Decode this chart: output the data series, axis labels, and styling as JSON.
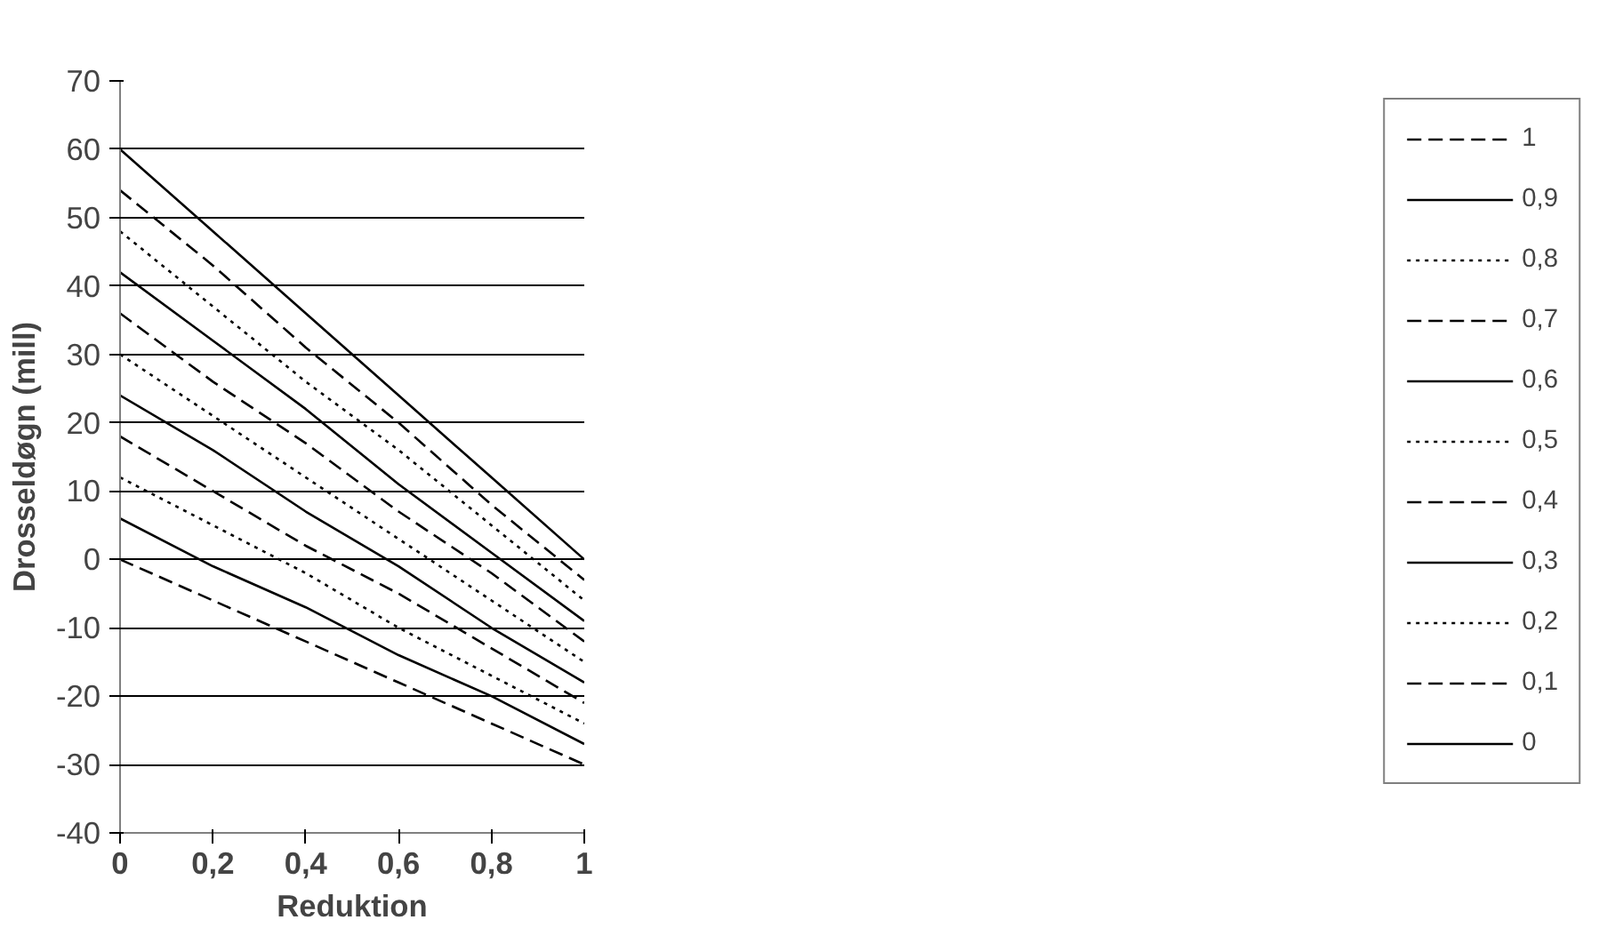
{
  "chart_data": {
    "type": "line",
    "xlabel": "Reduktion",
    "ylabel": "Drosseldøgn (mill)",
    "x": [
      0,
      0.2,
      0.4,
      0.6,
      0.8,
      1
    ],
    "xlim": [
      0,
      1
    ],
    "xticks": [
      0,
      {
        "value": 0.2,
        "label": "0,2"
      },
      {
        "value": 0.4,
        "label": "0,4"
      },
      {
        "value": 0.6,
        "label": "0,6"
      },
      {
        "value": 0.8,
        "label": "0,8"
      },
      1
    ],
    "ylim": [
      -40,
      70
    ],
    "yticks": [
      -40,
      -30,
      -20,
      -10,
      0,
      10,
      20,
      30,
      40,
      50,
      60,
      70
    ],
    "grid": "y",
    "legend": "right",
    "marker": "none",
    "series": [
      {
        "name": "1",
        "color": "#000000",
        "line_style": "dashed",
        "values": [
          0,
          -6,
          -12,
          -18,
          -24,
          -30
        ]
      },
      {
        "name": "0,9",
        "color": "#000000",
        "line_style": "solid",
        "values": [
          6,
          -1,
          -7,
          -14,
          -20,
          -27
        ]
      },
      {
        "name": "0,8",
        "color": "#000000",
        "line_style": "dotted",
        "values": [
          12,
          5,
          -2,
          -10,
          -17,
          -24
        ]
      },
      {
        "name": "0,7",
        "color": "#000000",
        "line_style": "dashed",
        "values": [
          18,
          10,
          2,
          -5,
          -13,
          -21
        ]
      },
      {
        "name": "0,6",
        "color": "#000000",
        "line_style": "solid",
        "values": [
          24,
          16,
          7,
          -1,
          -10,
          -18
        ]
      },
      {
        "name": "0,5",
        "color": "#000000",
        "line_style": "dotted",
        "values": [
          30,
          21,
          12,
          3,
          -6,
          -15
        ]
      },
      {
        "name": "0,4",
        "color": "#000000",
        "line_style": "dashed",
        "values": [
          36,
          26,
          17,
          7,
          -2,
          -12
        ]
      },
      {
        "name": "0,3",
        "color": "#000000",
        "line_style": "solid",
        "values": [
          42,
          32,
          22,
          11,
          1,
          -9
        ]
      },
      {
        "name": "0,2",
        "color": "#000000",
        "line_style": "dotted",
        "values": [
          48,
          37,
          26,
          16,
          5,
          -6
        ]
      },
      {
        "name": "0,1",
        "color": "#000000",
        "line_style": "dashed",
        "values": [
          54,
          43,
          31,
          20,
          8,
          -3
        ]
      },
      {
        "name": "0",
        "color": "#000000",
        "line_style": "solid",
        "values": [
          60,
          48,
          36,
          24,
          12,
          0
        ]
      }
    ]
  }
}
